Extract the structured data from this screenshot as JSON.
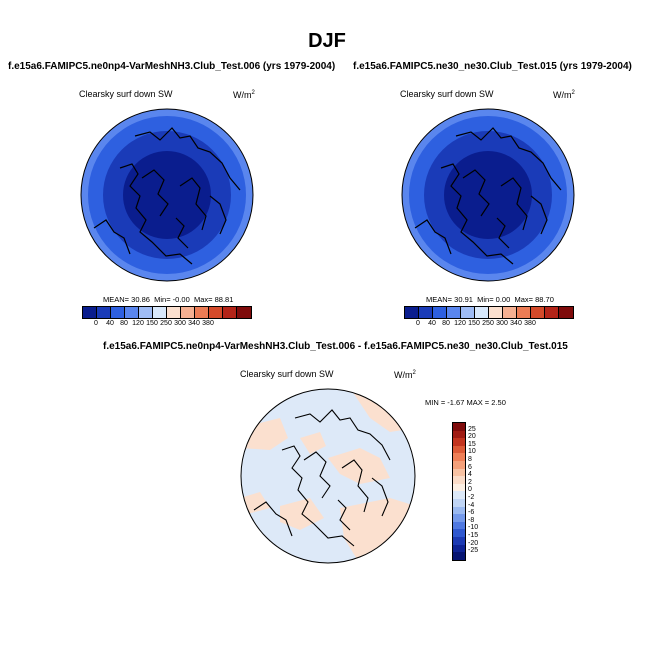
{
  "figure": {
    "title": "DJF"
  },
  "panels": [
    {
      "title": "f.e15a6.FAMIPC5.ne0np4-VarMeshNH3.Club_Test.006 (yrs 1979-2004)",
      "variable": "Clearsky surf down SW",
      "units": "W/m",
      "units_sup": "2",
      "stats": {
        "mean": "30.86",
        "min": "-0.00",
        "max": "88.81"
      },
      "stat_labels": {
        "mean": "MEAN=",
        "min": "Min=",
        "max": "Max="
      }
    },
    {
      "title": "f.e15a6.FAMIPC5.ne30_ne30.Club_Test.015 (yrs 1979-2004)",
      "variable": "Clearsky surf down SW",
      "units": "W/m",
      "units_sup": "2",
      "stats": {
        "mean": "30.91",
        "min": "0.00",
        "max": "88.70"
      },
      "stat_labels": {
        "mean": "MEAN=",
        "min": "Min=",
        "max": "Max="
      }
    },
    {
      "title": "f.e15a6.FAMIPC5.ne0np4-VarMeshNH3.Club_Test.006 - f.e15a6.FAMIPC5.ne30_ne30.Club_Test.015",
      "variable": "Clearsky surf down SW",
      "units": "W/m",
      "units_sup": "2",
      "stats_text": "MIN = -1.67 MAX =  2.50"
    }
  ],
  "chart_data": [
    {
      "type": "heatmap",
      "projection": "north-polar-stereographic",
      "title": "Clearsky surf down SW",
      "units": "W/m2",
      "legend": "bottom-horizontal",
      "colorbar_levels": [
        "0",
        "40",
        "80",
        "120",
        "150",
        "250",
        "300",
        "340",
        "380"
      ],
      "colorbar_colors": [
        "#0a1d8e",
        "#1a3bb8",
        "#2e60e0",
        "#5a86ee",
        "#9fbcf5",
        "#d8e8fb",
        "#fbe0cf",
        "#f5b092",
        "#ec7c55",
        "#d44a2a",
        "#b42418",
        "#7f0b0b"
      ],
      "values_rings": [
        {
          "band": "outer edge",
          "range": "80-120",
          "color": "#5a86ee"
        },
        {
          "band": "outer",
          "range": "40-80",
          "color": "#2e60e0"
        },
        {
          "band": "middle",
          "range": "40-80",
          "color": "#1a3bb8"
        },
        {
          "band": "pole",
          "range": "0-40",
          "color": "#0a1d8e"
        }
      ],
      "mean": 30.86,
      "min": -0.0,
      "max": 88.81
    },
    {
      "type": "heatmap",
      "projection": "north-polar-stereographic",
      "title": "Clearsky surf down SW",
      "units": "W/m2",
      "legend": "bottom-horizontal",
      "colorbar_levels": [
        "0",
        "40",
        "80",
        "120",
        "150",
        "250",
        "300",
        "340",
        "380"
      ],
      "colorbar_colors": [
        "#0a1d8e",
        "#1a3bb8",
        "#2e60e0",
        "#5a86ee",
        "#9fbcf5",
        "#d8e8fb",
        "#fbe0cf",
        "#f5b092",
        "#ec7c55",
        "#d44a2a",
        "#b42418",
        "#7f0b0b"
      ],
      "mean": 30.91,
      "min": 0.0,
      "max": 88.7
    },
    {
      "type": "heatmap",
      "projection": "north-polar-stereographic",
      "title": "Clearsky surf down SW",
      "units": "W/m2",
      "legend": "right-vertical",
      "colorbar_levels": [
        "25",
        "20",
        "15",
        "10",
        "8",
        "6",
        "4",
        "2",
        "0",
        "-2",
        "-4",
        "-6",
        "-8",
        "-10",
        "-15",
        "-20",
        "-25"
      ],
      "colorbar_colors": [
        "#7f0b0b",
        "#a01c14",
        "#c2341f",
        "#dc5a37",
        "#ee7f57",
        "#f4a07a",
        "#f8c2a3",
        "#fbdcc8",
        "#fdf0e4",
        "#dde9f8",
        "#c0d5f5",
        "#9ab9f0",
        "#7499ea",
        "#4f78e0",
        "#2f58cf",
        "#1c3ab3",
        "#0e2394",
        "#061472"
      ],
      "min": -1.67,
      "max": 2.5
    }
  ]
}
